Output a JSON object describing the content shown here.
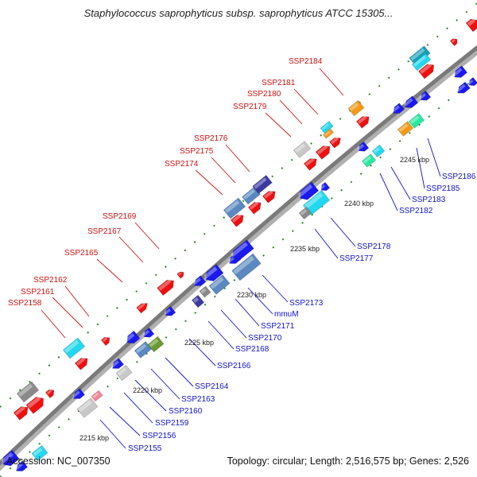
{
  "title": "Staphylococcus saprophyticus subsp. saprophyticus ATCC 15305...",
  "footer": {
    "accession": "Accession: NC_007350",
    "summary": "Topology: circular; Length: 2,516,575 bp; Genes: 2,526"
  },
  "colors": {
    "backbone": "#8a8a8a",
    "forward_label": "#d01010",
    "reverse_label": "#1010cc",
    "red": "#ee1010",
    "blue": "#1a1aee",
    "cyan": "#22d8ee",
    "steel": "#5a88c0",
    "orange": "#f59a18",
    "navy": "#3a3aa0",
    "gray": "#8a8a8a",
    "silver": "#c8c8c8",
    "teal": "#18a0b8",
    "green": "#28e8a0",
    "olive": "#6a9a30",
    "dot_green": "#2a8a2a"
  },
  "kbp_ticks": [
    {
      "label": "2215 kbp"
    },
    {
      "label": "2220 kbp"
    },
    {
      "label": "2225 kbp"
    },
    {
      "label": "2230 kbp"
    },
    {
      "label": "2235 kbp"
    },
    {
      "label": "2240 kbp"
    },
    {
      "label": "2245 kbp"
    }
  ],
  "forward_labels": [
    {
      "name": "SSP2158"
    },
    {
      "name": "SSP2161"
    },
    {
      "name": "SSP2162"
    },
    {
      "name": "SSP2165"
    },
    {
      "name": "SSP2167"
    },
    {
      "name": "SSP2169"
    },
    {
      "name": "SSP2174"
    },
    {
      "name": "SSP2175"
    },
    {
      "name": "SSP2176"
    },
    {
      "name": "SSP2179"
    },
    {
      "name": "SSP2180"
    },
    {
      "name": "SSP2181"
    },
    {
      "name": "SSP2184"
    }
  ],
  "reverse_labels": [
    {
      "name": "SSP2155"
    },
    {
      "name": "SSP2156"
    },
    {
      "name": "SSP2159"
    },
    {
      "name": "SSP2160"
    },
    {
      "name": "SSP2163"
    },
    {
      "name": "SSP2164"
    },
    {
      "name": "SSP2166"
    },
    {
      "name": "SSP2168"
    },
    {
      "name": "SSP2170"
    },
    {
      "name": "SSP2171"
    },
    {
      "name": "mmuM"
    },
    {
      "name": "SSP2173"
    },
    {
      "name": "SSP2177"
    },
    {
      "name": "SSP2178"
    },
    {
      "name": "SSP2182"
    },
    {
      "name": "SSP2183"
    },
    {
      "name": "SSP2185"
    },
    {
      "name": "SSP2186"
    }
  ]
}
